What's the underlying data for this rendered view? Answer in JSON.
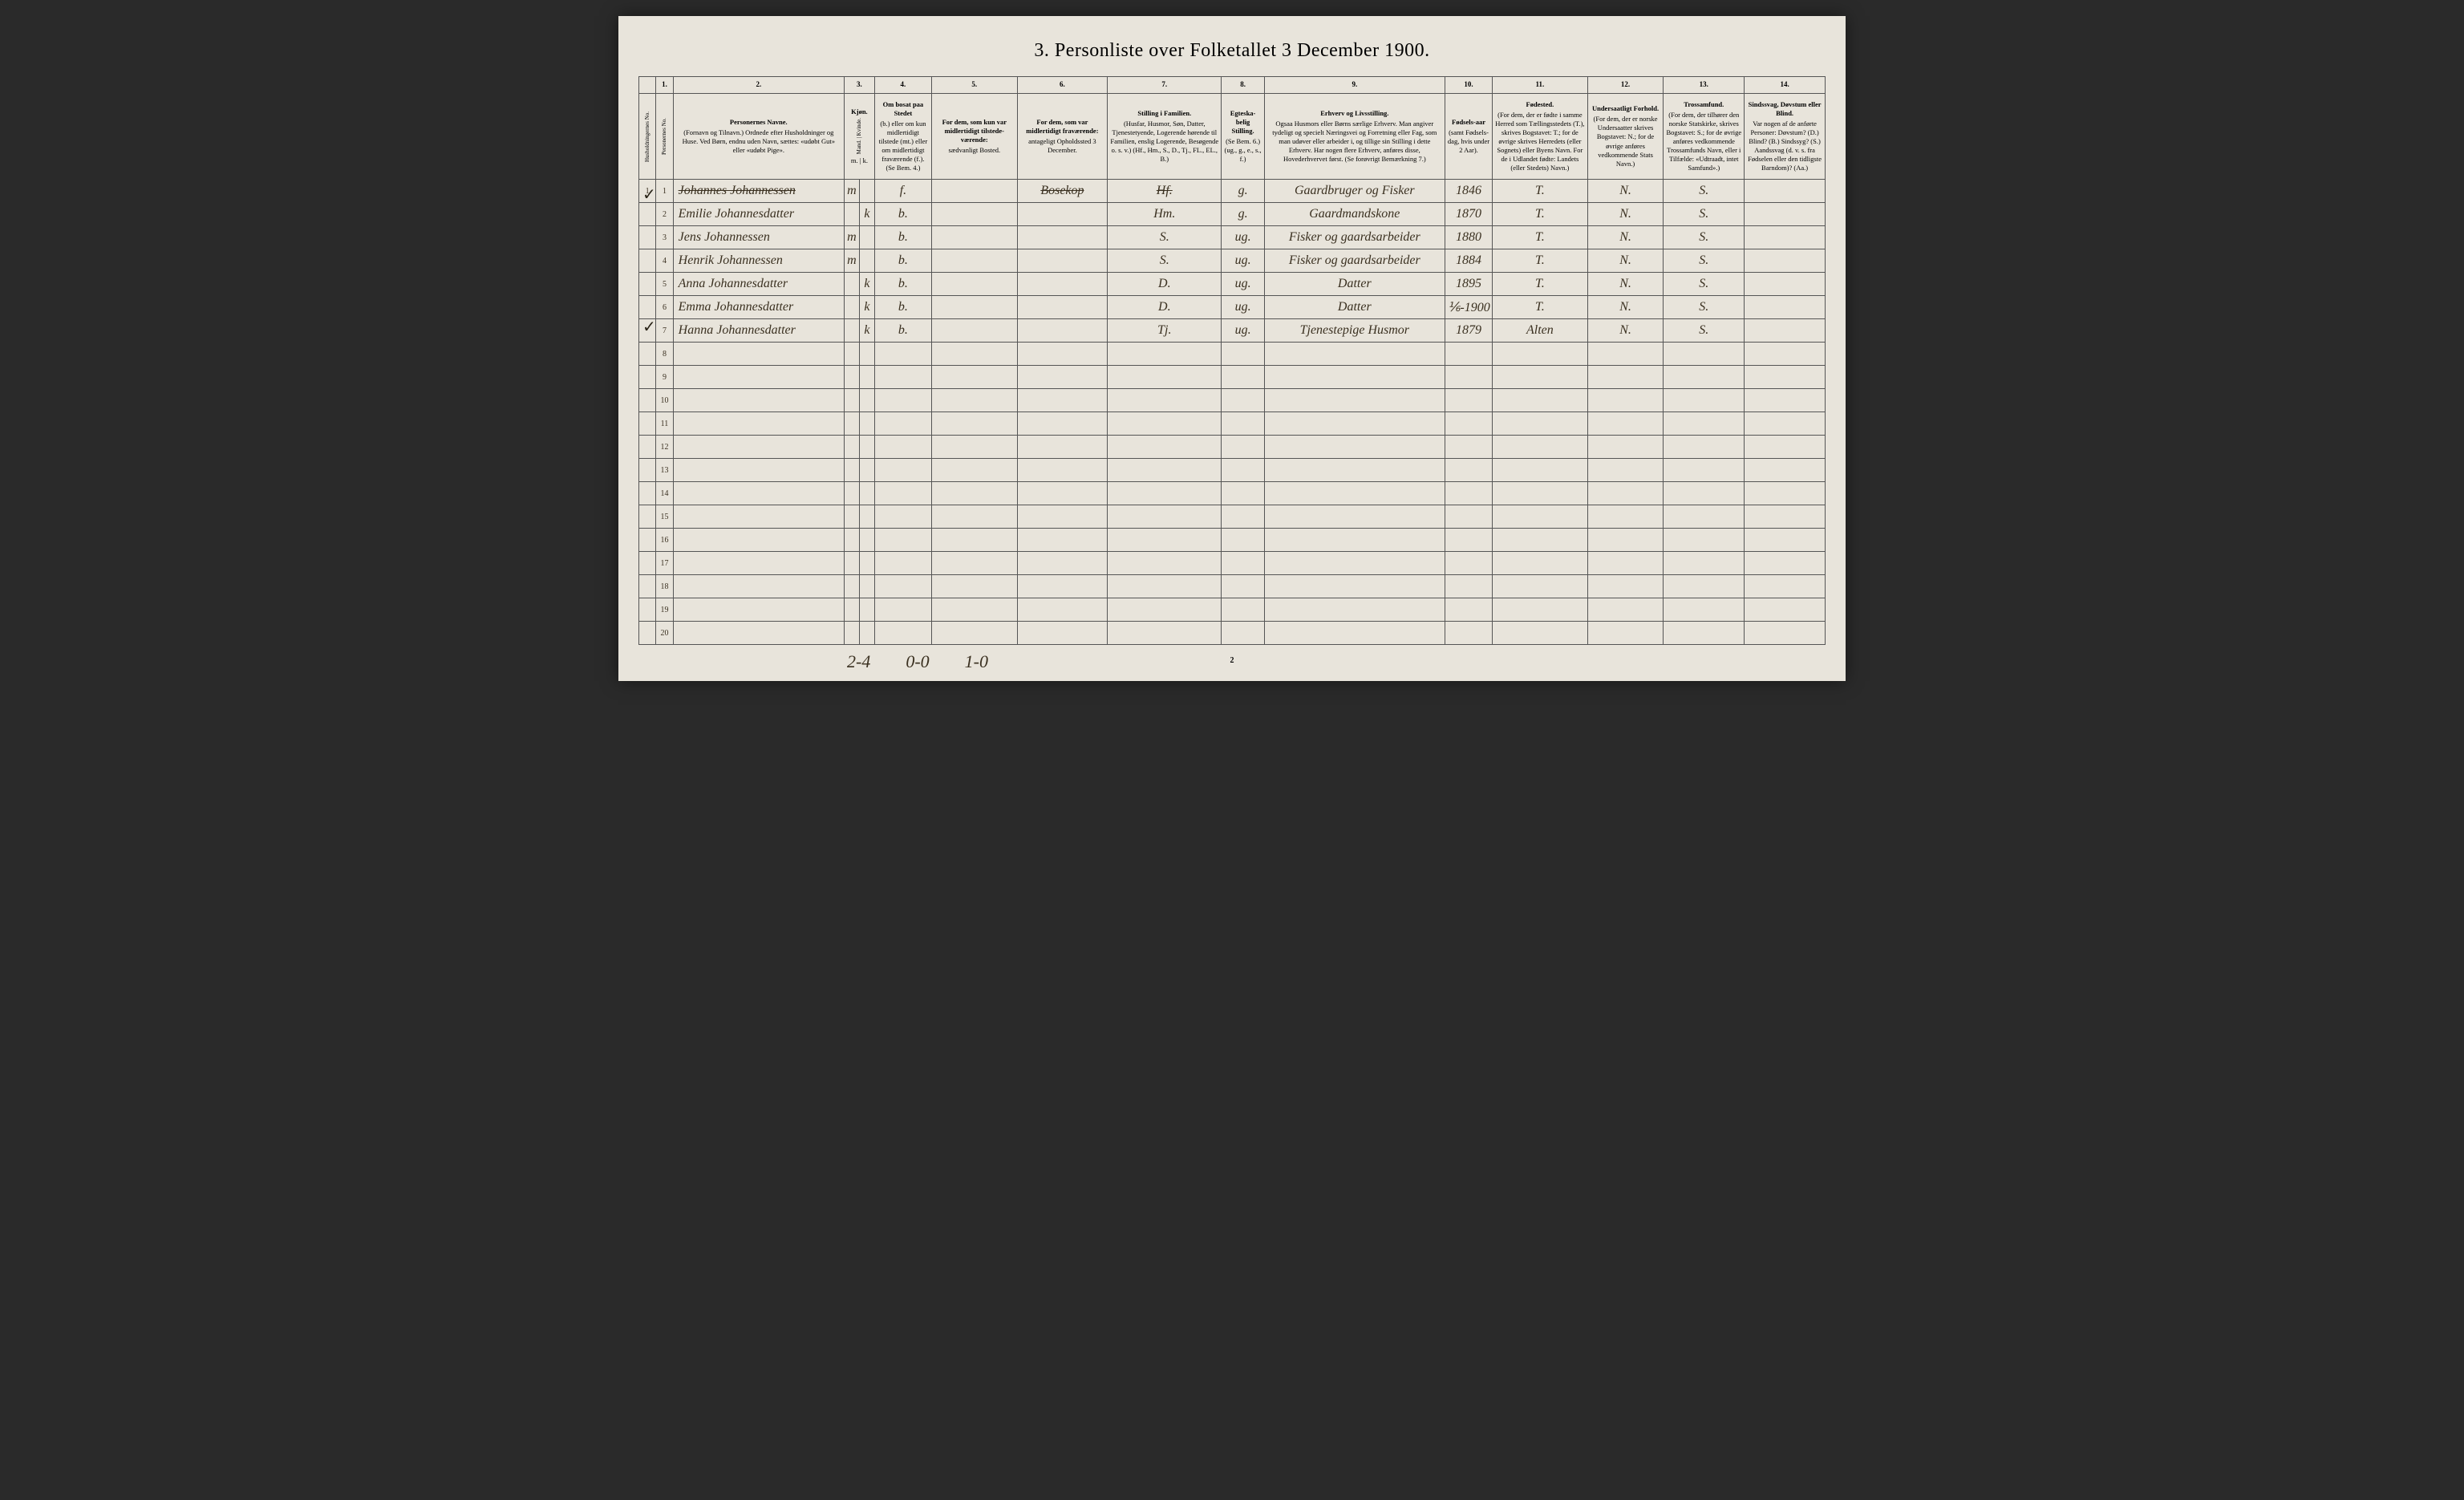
{
  "title": "3. Personliste over Folketallet 3 December 1900.",
  "columns": {
    "nums": [
      "",
      "1.",
      "2.",
      "3.",
      "4.",
      "5.",
      "6.",
      "7.",
      "8.",
      "9.",
      "10.",
      "11.",
      "12.",
      "13.",
      "14."
    ],
    "headers": [
      {
        "main": "Husholdningernes No."
      },
      {
        "main": "Personernes No."
      },
      {
        "main": "Personernes Navne.",
        "sub": "(Fornavn og Tilnavn.) Ordnede efter Husholdninger og Huse. Ved Børn, endnu uden Navn, sættes: «udøbt Gut» eller «udøbt Pige»."
      },
      {
        "main": "Kjøn.",
        "sub": "Mand. | Kvinde.",
        "sub2": "m. | k."
      },
      {
        "main": "Om bosat paa Stedet",
        "sub": "(b.) eller om kun midlertidigt tilstede (mt.) eller om midlertidigt fraværende (f.). (Se Bem. 4.)"
      },
      {
        "main": "For dem, som kun var midlertidigt tilstede-værende:",
        "sub": "sædvanligt Bosted."
      },
      {
        "main": "For dem, som var midlertidigt fraværende:",
        "sub": "antageligt Opholdssted 3 December."
      },
      {
        "main": "Stilling i Familien.",
        "sub": "(Husfar, Husmor, Søn, Datter, Tjenestetyende, Logerende hørende til Familien, enslig Logerende, Besøgende o. s. v.) (Hf., Hm., S., D., Tj., FL., EL., B.)"
      },
      {
        "main": "Egteska-belig Stilling.",
        "sub": "(Se Bem. 6.) (ug., g., e., s., f.)"
      },
      {
        "main": "Erhverv og Livsstilling.",
        "sub": "Ogsaa Husmors eller Børns særlige Erhverv. Man angiver tydeligt og specielt Næringsvei og Forretning eller Fag, som man udøver eller arbeider i, og tillige sin Stilling i dette Erhverv. Har nogen flere Erhverv, anføres disse, Hovederhvervet først. (Se forøvrigt Bemærkning 7.)"
      },
      {
        "main": "Fødsels-aar",
        "sub": "(samt Fødsels-dag, hvis under 2 Aar)."
      },
      {
        "main": "Fødested.",
        "sub": "(For dem, der er fødte i samme Herred som Tællingsstedets (T.), skrives Bogstavet: T.; for de øvrige skrives Herredets (eller Sognets) eller Byens Navn. For de i Udlandet fødte: Landets (eller Stedets) Navn.)"
      },
      {
        "main": "Undersaatligt Forhold.",
        "sub": "(For dem, der er norske Undersaatter skrives Bogstavet: N.; for de øvrige anføres vedkommende Stats Navn.)"
      },
      {
        "main": "Trossamfund.",
        "sub": "(For dem, der tilhører den norske Statskirke, skrives Bogstavet: S.; for de øvrige anføres vedkommende Trossamfunds Navn, eller i Tilfælde: «Udtraadt, intet Samfund».)"
      },
      {
        "main": "Sindssvag, Døvstum eller Blind.",
        "sub": "Var nogen af de anførte Personer: Døvstum? (D.) Blind? (B.) Sindssyg? (S.) Aandssvag (d. v. s. fra Fødselen eller den tidligste Barndom)? (Aa.)"
      }
    ]
  },
  "rows": [
    {
      "hus": "1",
      "pers": "1",
      "name": "Johannes Johannessen",
      "m": "m",
      "k": "",
      "bosat": "f.",
      "mt": "",
      "fra": "Bosekop",
      "stilling": "Hf.",
      "egte": "g.",
      "erhverv": "Gaardbruger og Fisker",
      "fodsel": "1846",
      "fodested": "T.",
      "under": "N.",
      "tros": "S.",
      "sinds": "",
      "strike": true
    },
    {
      "hus": "",
      "pers": "2",
      "name": "Emilie Johannesdatter",
      "m": "",
      "k": "k",
      "bosat": "b.",
      "mt": "",
      "fra": "",
      "stilling": "Hm.",
      "egte": "g.",
      "erhverv": "Gaardmandskone",
      "fodsel": "1870",
      "fodested": "T.",
      "under": "N.",
      "tros": "S.",
      "sinds": ""
    },
    {
      "hus": "",
      "pers": "3",
      "name": "Jens Johannessen",
      "m": "m",
      "k": "",
      "bosat": "b.",
      "mt": "",
      "fra": "",
      "stilling": "S.",
      "egte": "ug.",
      "erhverv": "Fisker og gaardsarbeider",
      "fodsel": "1880",
      "fodested": "T.",
      "under": "N.",
      "tros": "S.",
      "sinds": ""
    },
    {
      "hus": "",
      "pers": "4",
      "name": "Henrik Johannessen",
      "m": "m",
      "k": "",
      "bosat": "b.",
      "mt": "",
      "fra": "",
      "stilling": "S.",
      "egte": "ug.",
      "erhverv": "Fisker og gaardsarbeider",
      "fodsel": "1884",
      "fodested": "T.",
      "under": "N.",
      "tros": "S.",
      "sinds": ""
    },
    {
      "hus": "",
      "pers": "5",
      "name": "Anna Johannesdatter",
      "m": "",
      "k": "k",
      "bosat": "b.",
      "mt": "",
      "fra": "",
      "stilling": "D.",
      "egte": "ug.",
      "erhverv": "Datter",
      "fodsel": "1895",
      "fodested": "T.",
      "under": "N.",
      "tros": "S.",
      "sinds": ""
    },
    {
      "hus": "",
      "pers": "6",
      "name": "Emma Johannesdatter",
      "m": "",
      "k": "k",
      "bosat": "b.",
      "mt": "",
      "fra": "",
      "stilling": "D.",
      "egte": "ug.",
      "erhverv": "Datter",
      "fodsel": "⅙-1900",
      "fodested": "T.",
      "under": "N.",
      "tros": "S.",
      "sinds": ""
    },
    {
      "hus": "",
      "pers": "7",
      "name": "Hanna Johannesdatter",
      "m": "",
      "k": "k",
      "bosat": "b.",
      "mt": "",
      "fra": "",
      "stilling": "Tj.",
      "egte": "ug.",
      "erhverv": "Tjenestepige Husmor",
      "fodsel": "1879",
      "fodested": "Alten",
      "under": "N.",
      "tros": "S.",
      "sinds": ""
    }
  ],
  "emptyRows": 13,
  "footnote": "2-4  0-0  1-0",
  "pageNumber": "2",
  "checkmarks": [
    {
      "row": 1,
      "symbol": "✓"
    },
    {
      "row": 7,
      "symbol": "✓"
    }
  ],
  "colors": {
    "paper": "#e8e4db",
    "ink": "#3a3020",
    "border": "#555"
  }
}
